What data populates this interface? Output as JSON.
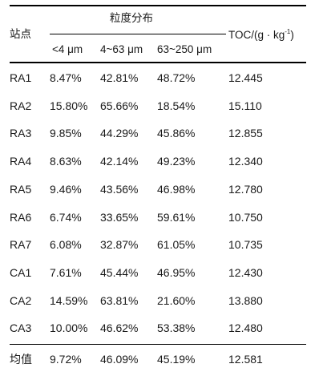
{
  "table": {
    "header": {
      "site": "站点",
      "group": "粒度分布",
      "col1": "<4 μm",
      "col2": "4~63 μm",
      "col3": "63~250 μm",
      "toc_main": "TOC/(g · kg",
      "toc_exp": "-1",
      "toc_close": ")"
    },
    "rows": [
      {
        "site": "RA1",
        "c1": "8.47%",
        "c2": "42.81%",
        "c3": "48.72%",
        "toc": "12.445"
      },
      {
        "site": "RA2",
        "c1": "15.80%",
        "c2": "65.66%",
        "c3": "18.54%",
        "toc": "15.110"
      },
      {
        "site": "RA3",
        "c1": "9.85%",
        "c2": "44.29%",
        "c3": "45.86%",
        "toc": "12.855"
      },
      {
        "site": "RA4",
        "c1": "8.63%",
        "c2": "42.14%",
        "c3": "49.23%",
        "toc": "12.340"
      },
      {
        "site": "RA5",
        "c1": "9.46%",
        "c2": "43.56%",
        "c3": "46.98%",
        "toc": "12.780"
      },
      {
        "site": "RA6",
        "c1": "6.74%",
        "c2": "33.65%",
        "c3": "59.61%",
        "toc": "10.750"
      },
      {
        "site": "RA7",
        "c1": "6.08%",
        "c2": "32.87%",
        "c3": "61.05%",
        "toc": "10.735"
      },
      {
        "site": "CA1",
        "c1": "7.61%",
        "c2": "45.44%",
        "c3": "46.95%",
        "toc": "12.430"
      },
      {
        "site": "CA2",
        "c1": "14.59%",
        "c2": "63.81%",
        "c3": "21.60%",
        "toc": "13.880"
      },
      {
        "site": "CA3",
        "c1": "10.00%",
        "c2": "46.62%",
        "c3": "53.38%",
        "toc": "12.480"
      }
    ],
    "footer": {
      "site": "均值",
      "c1": "9.72%",
      "c2": "46.09%",
      "c3": "45.19%",
      "toc": "12.581"
    }
  }
}
